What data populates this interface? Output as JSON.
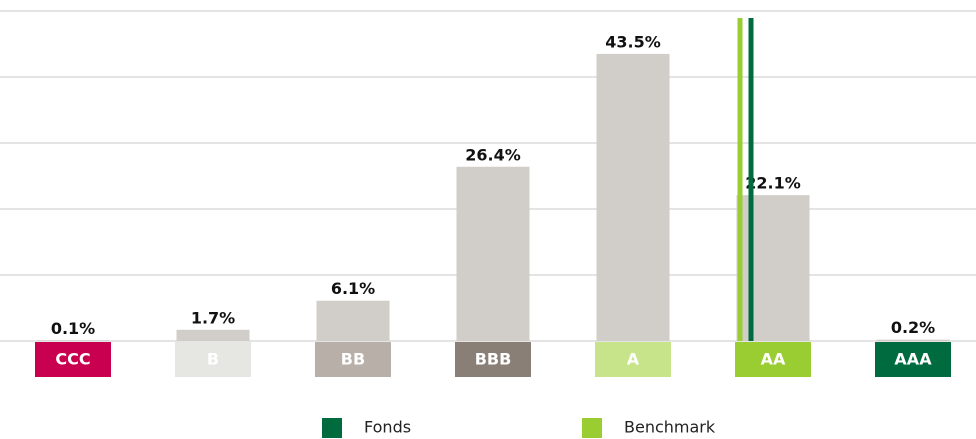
{
  "chart_data": {
    "type": "bar",
    "categories": [
      "CCC",
      "B",
      "BB",
      "BBB",
      "A",
      "AA",
      "AAA"
    ],
    "category_colors": [
      "#c8004f",
      "#e6e6e3",
      "#b7afa8",
      "#8a7f76",
      "#c8e48a",
      "#9acd32",
      "#006b3f"
    ],
    "values": [
      0.1,
      1.7,
      6.1,
      26.4,
      43.5,
      22.1,
      0.2
    ],
    "value_labels": [
      "0.1%",
      "1.7%",
      "6.1%",
      "26.4%",
      "43.5%",
      "22.1%",
      "0.2%"
    ],
    "color": "#d1cdc8",
    "ylim": [
      0,
      50
    ],
    "yticks": [
      0,
      10,
      20,
      30,
      40,
      50
    ],
    "grid": true,
    "markers": [
      {
        "name": "Fonds",
        "color": "#006b3f",
        "category": "AA"
      },
      {
        "name": "Benchmark",
        "color": "#9acd32",
        "category": "AA"
      }
    ],
    "legend": "bottom"
  }
}
